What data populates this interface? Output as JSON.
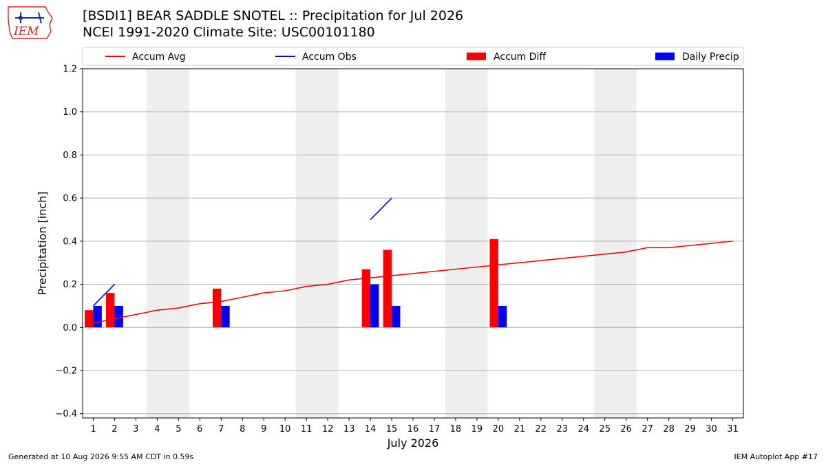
{
  "header": {
    "title_line1": "[BSDI1] BEAR SADDLE SNOTEL :: Precipitation for Jul 2026",
    "title_line2": "NCEI 1991-2020 Climate Site: USC00101180"
  },
  "logo": {
    "text": "IEM"
  },
  "footer": {
    "generated": "Generated at 10 Aug 2026 9:55 AM CDT in 0.59s",
    "app": "IEM Autoplot App #17"
  },
  "colors": {
    "accum_avg": "#ff0000",
    "accum_obs": "#0000ff",
    "accum_diff": "#ff0000",
    "daily_precip": "#0000ff",
    "weekend_band": "#eeeeee",
    "grid": "#b0b0b0"
  },
  "chart_data": {
    "type": "bar",
    "xlabel": "July 2026",
    "ylabel": "Precipitation [inch]",
    "xlim": [
      0.5,
      31.5
    ],
    "ylim": [
      -0.42,
      1.2
    ],
    "yticks": [
      -0.4,
      -0.2,
      0.0,
      0.2,
      0.4,
      0.6,
      0.8,
      1.0,
      1.2
    ],
    "ytick_labels": [
      "−0.4",
      "−0.2",
      "0.0",
      "0.2",
      "0.4",
      "0.6",
      "0.8",
      "1.0",
      "1.2"
    ],
    "xticks": [
      1,
      2,
      3,
      4,
      5,
      6,
      7,
      8,
      9,
      10,
      11,
      12,
      13,
      14,
      15,
      16,
      17,
      18,
      19,
      20,
      21,
      22,
      23,
      24,
      25,
      26,
      27,
      28,
      29,
      30,
      31
    ],
    "grid": "horizontal",
    "legend_position": "top",
    "weekend_bands": [
      [
        3.5,
        5.5
      ],
      [
        10.5,
        12.5
      ],
      [
        17.5,
        19.5
      ],
      [
        24.5,
        26.5
      ]
    ],
    "legend": [
      {
        "label": "Accum Avg",
        "kind": "line",
        "color": "#ff0000"
      },
      {
        "label": "Accum Obs",
        "kind": "line",
        "color": "#0000ff"
      },
      {
        "label": "Accum Diff",
        "kind": "bar",
        "color": "#ff0000"
      },
      {
        "label": "Daily Precip",
        "kind": "bar",
        "color": "#0000ff"
      }
    ],
    "accum_avg": {
      "name": "Accum Avg",
      "x": [
        1,
        2,
        3,
        4,
        5,
        6,
        7,
        8,
        9,
        10,
        11,
        12,
        13,
        14,
        15,
        16,
        17,
        18,
        19,
        20,
        21,
        22,
        23,
        24,
        25,
        26,
        27,
        28,
        29,
        30,
        31
      ],
      "y": [
        0.02,
        0.04,
        0.06,
        0.08,
        0.09,
        0.11,
        0.12,
        0.14,
        0.16,
        0.17,
        0.19,
        0.2,
        0.22,
        0.23,
        0.24,
        0.25,
        0.26,
        0.27,
        0.28,
        0.29,
        0.3,
        0.31,
        0.32,
        0.33,
        0.34,
        0.35,
        0.37,
        0.37,
        0.38,
        0.39,
        0.4
      ]
    },
    "accum_obs": {
      "name": "Accum Obs",
      "segments": [
        {
          "x": [
            1,
            2
          ],
          "y": [
            0.1,
            0.2
          ]
        },
        {
          "x": [
            14,
            15
          ],
          "y": [
            0.5,
            0.6
          ]
        }
      ]
    },
    "accum_diff": {
      "name": "Accum Diff",
      "x": [
        1,
        2,
        7,
        14,
        15,
        20
      ],
      "y": [
        0.08,
        0.16,
        0.18,
        0.27,
        0.36,
        0.41
      ]
    },
    "daily_precip": {
      "name": "Daily Precip",
      "x": [
        1,
        2,
        7,
        14,
        15,
        20
      ],
      "y": [
        0.1,
        0.1,
        0.1,
        0.2,
        0.1,
        0.1
      ]
    }
  }
}
